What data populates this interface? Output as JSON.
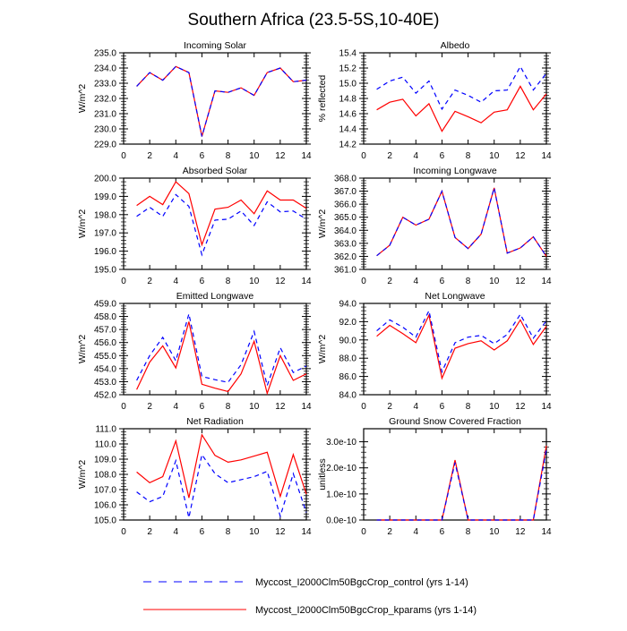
{
  "title": "Southern Africa (23.5-5S,10-40E)",
  "legend": [
    {
      "name": "Myccost_I2000Clm50BgcCrop_control (yrs 1-14)",
      "color": "#0000ff",
      "style": "dashed"
    },
    {
      "name": "Myccost_I2000Clm50BgcCrop_kparams (yrs 1-14)",
      "color": "#ff0000",
      "style": "solid"
    }
  ],
  "chart_data": [
    {
      "type": "line",
      "title": "Incoming Solar",
      "ylabel": "W/m^2",
      "xlim": [
        0,
        14
      ],
      "ylim": [
        229,
        235
      ],
      "xticks": [
        "0",
        "2",
        "4",
        "6",
        "8",
        "10",
        "12",
        "14"
      ],
      "yticks": [
        "229.0",
        "230.0",
        "231.0",
        "232.0",
        "233.0",
        "234.0",
        "235.0"
      ],
      "x": [
        1,
        2,
        3,
        4,
        5,
        6,
        7,
        8,
        9,
        10,
        11,
        12,
        13,
        14
      ],
      "series": [
        {
          "name": "control",
          "values": [
            232.8,
            233.7,
            233.2,
            234.1,
            233.7,
            229.5,
            232.5,
            232.4,
            232.7,
            232.2,
            233.7,
            234.0,
            233.1,
            233.2
          ]
        },
        {
          "name": "kparams",
          "values": [
            232.8,
            233.7,
            233.2,
            234.1,
            233.7,
            229.5,
            232.5,
            232.4,
            232.7,
            232.2,
            233.7,
            234.0,
            233.1,
            233.2
          ]
        }
      ]
    },
    {
      "type": "line",
      "title": "Albedo",
      "ylabel": "% reflected",
      "xlim": [
        0,
        14
      ],
      "ylim": [
        14.2,
        15.4
      ],
      "xticks": [
        "0",
        "2",
        "4",
        "6",
        "8",
        "10",
        "12",
        "14"
      ],
      "yticks": [
        "14.2",
        "14.4",
        "14.6",
        "14.8",
        "15.0",
        "15.2",
        "15.4"
      ],
      "x": [
        1,
        2,
        3,
        4,
        5,
        6,
        7,
        8,
        9,
        10,
        11,
        12,
        13,
        14
      ],
      "series": [
        {
          "name": "control",
          "values": [
            14.92,
            15.03,
            15.08,
            14.87,
            15.03,
            14.66,
            14.91,
            14.84,
            14.75,
            14.9,
            14.91,
            15.22,
            14.91,
            15.13
          ]
        },
        {
          "name": "kparams",
          "values": [
            14.65,
            14.75,
            14.79,
            14.57,
            14.73,
            14.37,
            14.63,
            14.56,
            14.48,
            14.62,
            14.65,
            14.96,
            14.65,
            14.86
          ]
        }
      ]
    },
    {
      "type": "line",
      "title": "Absorbed Solar",
      "ylabel": "W/m^2",
      "xlim": [
        0,
        14
      ],
      "ylim": [
        195,
        200
      ],
      "xticks": [
        "0",
        "2",
        "4",
        "6",
        "8",
        "10",
        "12",
        "14"
      ],
      "yticks": [
        "195.0",
        "196.0",
        "197.0",
        "198.0",
        "199.0",
        "200.0"
      ],
      "x": [
        1,
        2,
        3,
        4,
        5,
        6,
        7,
        8,
        9,
        10,
        11,
        12,
        13,
        14
      ],
      "series": [
        {
          "name": "control",
          "values": [
            197.9,
            198.4,
            197.9,
            199.1,
            198.45,
            195.8,
            197.7,
            197.75,
            198.2,
            197.4,
            198.7,
            198.15,
            198.2,
            197.75
          ]
        },
        {
          "name": "kparams",
          "values": [
            198.5,
            199.0,
            198.55,
            199.8,
            199.15,
            196.35,
            198.3,
            198.4,
            198.8,
            198.05,
            199.3,
            198.8,
            198.8,
            198.35
          ]
        }
      ]
    },
    {
      "type": "line",
      "title": "Incoming Longwave",
      "ylabel": "W/m^2",
      "xlim": [
        0,
        14
      ],
      "ylim": [
        361,
        368
      ],
      "xticks": [
        "0",
        "2",
        "4",
        "6",
        "8",
        "10",
        "12",
        "14"
      ],
      "yticks": [
        "361.0",
        "362.0",
        "363.0",
        "364.0",
        "365.0",
        "366.0",
        "367.0",
        "368.0"
      ],
      "x": [
        1,
        2,
        3,
        4,
        5,
        6,
        7,
        8,
        9,
        10,
        11,
        12,
        13,
        14
      ],
      "series": [
        {
          "name": "control",
          "values": [
            362.05,
            362.85,
            365.0,
            364.4,
            364.85,
            367.0,
            363.45,
            362.6,
            363.7,
            367.25,
            362.25,
            362.65,
            363.5,
            362.0
          ]
        },
        {
          "name": "kparams",
          "values": [
            362.05,
            362.85,
            365.0,
            364.4,
            364.85,
            367.0,
            363.45,
            362.6,
            363.7,
            367.25,
            362.25,
            362.65,
            363.5,
            362.0
          ]
        }
      ]
    },
    {
      "type": "line",
      "title": "Emitted Longwave",
      "ylabel": "W/m^2",
      "xlim": [
        0,
        14
      ],
      "ylim": [
        452,
        459
      ],
      "xticks": [
        "0",
        "2",
        "4",
        "6",
        "8",
        "10",
        "12",
        "14"
      ],
      "yticks": [
        "452.0",
        "453.0",
        "454.0",
        "455.0",
        "456.0",
        "457.0",
        "458.0",
        "459.0"
      ],
      "x": [
        1,
        2,
        3,
        4,
        5,
        6,
        7,
        8,
        9,
        10,
        11,
        12,
        13,
        14
      ],
      "series": [
        {
          "name": "control",
          "values": [
            453.1,
            455.0,
            456.4,
            454.6,
            458.2,
            453.4,
            453.15,
            452.95,
            454.3,
            456.85,
            452.7,
            455.6,
            453.7,
            454.2
          ]
        },
        {
          "name": "kparams",
          "values": [
            452.4,
            454.5,
            455.75,
            454.05,
            457.6,
            452.8,
            452.5,
            452.25,
            453.6,
            456.1,
            452.1,
            455.0,
            453.1,
            453.6
          ]
        }
      ]
    },
    {
      "type": "line",
      "title": "Net Longwave",
      "ylabel": "W/m^2",
      "xlim": [
        0,
        14
      ],
      "ylim": [
        84,
        94
      ],
      "xticks": [
        "0",
        "2",
        "4",
        "6",
        "8",
        "10",
        "12",
        "14"
      ],
      "yticks": [
        "84.0",
        "86.0",
        "88.0",
        "90.0",
        "92.0",
        "94.0"
      ],
      "x": [
        1,
        2,
        3,
        4,
        5,
        6,
        7,
        8,
        9,
        10,
        11,
        12,
        13,
        14
      ],
      "series": [
        {
          "name": "control",
          "values": [
            91.0,
            92.2,
            91.4,
            90.3,
            93.2,
            86.5,
            89.7,
            90.3,
            90.5,
            89.6,
            90.6,
            92.8,
            90.2,
            92.1
          ]
        },
        {
          "name": "kparams",
          "values": [
            90.4,
            91.6,
            90.7,
            89.7,
            92.7,
            85.8,
            89.1,
            89.6,
            89.9,
            88.9,
            89.9,
            92.2,
            89.5,
            91.5
          ]
        }
      ]
    },
    {
      "type": "line",
      "title": "Net Radiation",
      "ylabel": "W/m^2",
      "xlim": [
        0,
        14
      ],
      "ylim": [
        105,
        111
      ],
      "xticks": [
        "0",
        "2",
        "4",
        "6",
        "8",
        "10",
        "12",
        "14"
      ],
      "yticks": [
        "105.0",
        "106.0",
        "107.0",
        "108.0",
        "109.0",
        "110.0",
        "111.0"
      ],
      "x": [
        1,
        2,
        3,
        4,
        5,
        6,
        7,
        8,
        9,
        10,
        11,
        12,
        13,
        14
      ],
      "series": [
        {
          "name": "control",
          "values": [
            106.85,
            106.2,
            106.55,
            108.9,
            105.15,
            109.3,
            108.05,
            107.45,
            107.65,
            107.85,
            108.2,
            105.25,
            108.05,
            105.5
          ]
        },
        {
          "name": "kparams",
          "values": [
            108.15,
            107.45,
            107.85,
            110.2,
            106.45,
            110.6,
            109.25,
            108.8,
            108.95,
            109.2,
            109.45,
            106.55,
            109.3,
            106.7
          ]
        }
      ]
    },
    {
      "type": "line",
      "title": "Ground Snow Covered Fraction",
      "ylabel": "unitless",
      "xlim": [
        0,
        14
      ],
      "ylim": [
        0,
        3.5e-10
      ],
      "xticks": [
        "0",
        "2",
        "4",
        "6",
        "8",
        "10",
        "12",
        "14"
      ],
      "yticks": [
        "0.0e-10",
        "1.0e-10",
        "2.0e-10",
        "3.0e-10"
      ],
      "ytick_values": [
        0,
        1e-10,
        2e-10,
        3e-10
      ],
      "x": [
        1,
        2,
        3,
        4,
        5,
        6,
        7,
        8,
        9,
        10,
        11,
        12,
        13,
        14
      ],
      "series": [
        {
          "name": "control",
          "values": [
            0,
            0,
            0,
            0,
            0,
            0,
            2.2e-10,
            0,
            0,
            0,
            0,
            0,
            0,
            2.7e-10
          ]
        },
        {
          "name": "kparams",
          "values": [
            0,
            0,
            0,
            0,
            0,
            0,
            2.3e-10,
            0,
            0,
            0,
            0,
            0,
            0,
            2.85e-10
          ]
        }
      ]
    }
  ]
}
